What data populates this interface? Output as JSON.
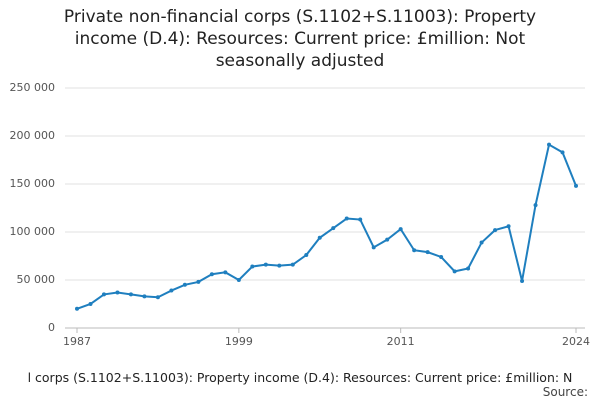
{
  "chart_data": {
    "type": "line",
    "title": "Private non-financial corps (S.1102+S.11003): Property income (D.4): Resources: Current price: £million: Not seasonally adjusted",
    "caption": "l corps (S.1102+S.11003): Property income (D.4): Resources: Current price: £million: N",
    "source_label": "Source:",
    "x": [
      1987,
      1988,
      1989,
      1990,
      1991,
      1992,
      1993,
      1994,
      1995,
      1996,
      1997,
      1998,
      1999,
      2000,
      2001,
      2002,
      2003,
      2004,
      2005,
      2006,
      2007,
      2008,
      2009,
      2010,
      2011,
      2012,
      2013,
      2014,
      2015,
      2016,
      2017,
      2018,
      2019,
      2020,
      2021,
      2022,
      2023,
      2024
    ],
    "series": [
      {
        "color": "#1f7fbf",
        "values": [
          20000,
          25000,
          35000,
          37000,
          35000,
          33000,
          32000,
          39000,
          45000,
          48000,
          56000,
          58000,
          50000,
          64000,
          66000,
          65000,
          66000,
          76000,
          94000,
          104000,
          114000,
          113000,
          84000,
          92000,
          103000,
          81000,
          79000,
          74000,
          59000,
          62000,
          89000,
          102000,
          106000,
          49000,
          128000,
          191000,
          183000,
          148000
        ]
      }
    ],
    "xlim": [
      1987,
      2024
    ],
    "xticks": [
      1987,
      1999,
      2011,
      2024
    ],
    "ylim": [
      0,
      250000
    ],
    "yticks": [
      0,
      {
        "value": 50000,
        "label": "50 000"
      },
      {
        "value": 100000,
        "label": "100 000"
      },
      {
        "value": 150000,
        "label": "150 000"
      },
      {
        "value": 200000,
        "label": "200 000"
      },
      {
        "value": 250000,
        "label": "250 000"
      }
    ],
    "grid": true
  }
}
